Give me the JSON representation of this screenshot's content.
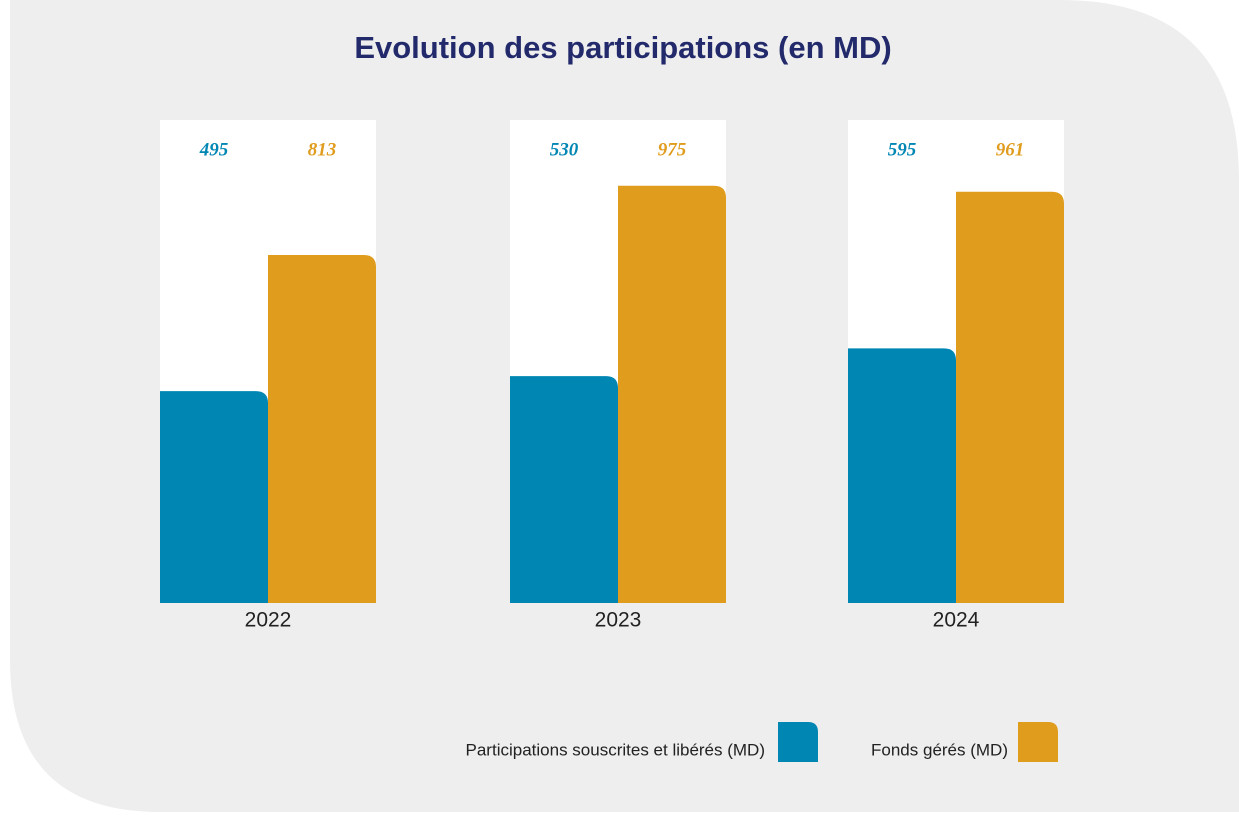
{
  "chart_data": {
    "type": "bar",
    "title": "Evolution des participations (en MD)",
    "categories": [
      "2022",
      "2023",
      "2024"
    ],
    "series": [
      {
        "name": "Participations souscrites et libérés (MD)",
        "color": "#0086b3",
        "values": [
          495,
          530,
          595
        ]
      },
      {
        "name": "Fonds gérés (MD)",
        "color": "#e09c1d",
        "values": [
          813,
          975,
          961
        ]
      }
    ],
    "ylim": [
      0,
      1000
    ]
  }
}
